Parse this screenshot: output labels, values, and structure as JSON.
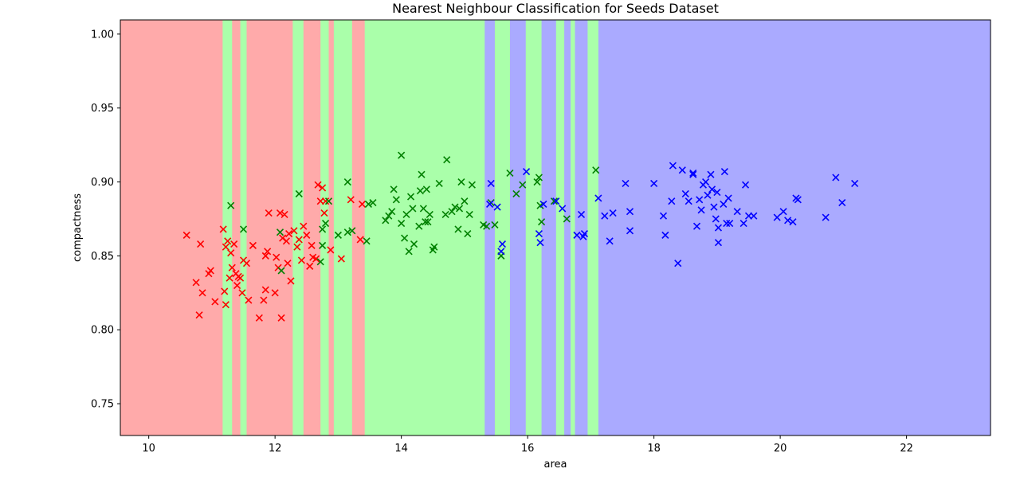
{
  "chart_data": {
    "type": "scatter",
    "title": "Nearest Neighbour Classification for Seeds Dataset",
    "xlabel": "area",
    "ylabel": "compactness",
    "xlim": [
      9.55,
      23.33
    ],
    "ylim": [
      0.7285,
      1.0096
    ],
    "xticks": [
      10,
      12,
      14,
      16,
      18,
      20,
      22
    ],
    "yticks": [
      0.75,
      0.8,
      0.85,
      0.9,
      0.95,
      1.0
    ],
    "xtick_labels": [
      "10",
      "12",
      "14",
      "16",
      "18",
      "20",
      "22"
    ],
    "ytick_labels": [
      "0.75",
      "0.80",
      "0.85",
      "0.90",
      "0.95",
      "1.00"
    ],
    "grid": false,
    "marker": "x",
    "classes": [
      {
        "color": "#ff0000",
        "region_color": "#ffaaaa"
      },
      {
        "color": "#008000",
        "region_color": "#aaffaa"
      },
      {
        "color": "#0000ff",
        "region_color": "#aaaaff"
      }
    ],
    "regions": [
      {
        "x0": 9.55,
        "x1": 11.17,
        "cls": 0
      },
      {
        "x0": 11.17,
        "x1": 11.32,
        "cls": 1
      },
      {
        "x0": 11.32,
        "x1": 11.45,
        "cls": 0
      },
      {
        "x0": 11.45,
        "x1": 11.55,
        "cls": 1
      },
      {
        "x0": 11.55,
        "x1": 12.28,
        "cls": 0
      },
      {
        "x0": 12.28,
        "x1": 12.45,
        "cls": 1
      },
      {
        "x0": 12.45,
        "x1": 12.72,
        "cls": 0
      },
      {
        "x0": 12.72,
        "x1": 12.85,
        "cls": 1
      },
      {
        "x0": 12.85,
        "x1": 12.93,
        "cls": 0
      },
      {
        "x0": 12.93,
        "x1": 13.22,
        "cls": 1
      },
      {
        "x0": 13.22,
        "x1": 13.42,
        "cls": 0
      },
      {
        "x0": 13.42,
        "x1": 15.32,
        "cls": 1
      },
      {
        "x0": 15.32,
        "x1": 15.48,
        "cls": 2
      },
      {
        "x0": 15.48,
        "x1": 15.72,
        "cls": 1
      },
      {
        "x0": 15.72,
        "x1": 15.97,
        "cls": 2
      },
      {
        "x0": 15.97,
        "x1": 16.22,
        "cls": 1
      },
      {
        "x0": 16.22,
        "x1": 16.45,
        "cls": 2
      },
      {
        "x0": 16.45,
        "x1": 16.58,
        "cls": 1
      },
      {
        "x0": 16.58,
        "x1": 16.68,
        "cls": 2
      },
      {
        "x0": 16.68,
        "x1": 16.75,
        "cls": 1
      },
      {
        "x0": 16.75,
        "x1": 16.95,
        "cls": 2
      },
      {
        "x0": 16.95,
        "x1": 17.12,
        "cls": 1
      },
      {
        "x0": 17.12,
        "x1": 23.33,
        "cls": 2
      }
    ],
    "series": [
      {
        "cls": 0,
        "points": [
          [
            10.6,
            0.864
          ],
          [
            10.75,
            0.832
          ],
          [
            10.8,
            0.81
          ],
          [
            10.82,
            0.858
          ],
          [
            10.85,
            0.825
          ],
          [
            10.95,
            0.838
          ],
          [
            10.98,
            0.84
          ],
          [
            11.05,
            0.819
          ],
          [
            11.18,
            0.868
          ],
          [
            11.2,
            0.826
          ],
          [
            11.22,
            0.856
          ],
          [
            11.22,
            0.817
          ],
          [
            11.25,
            0.86
          ],
          [
            11.28,
            0.835
          ],
          [
            11.3,
            0.852
          ],
          [
            11.32,
            0.842
          ],
          [
            11.35,
            0.858
          ],
          [
            11.38,
            0.838
          ],
          [
            11.4,
            0.83
          ],
          [
            11.42,
            0.836
          ],
          [
            11.45,
            0.835
          ],
          [
            11.48,
            0.825
          ],
          [
            11.5,
            0.847
          ],
          [
            11.55,
            0.845
          ],
          [
            11.58,
            0.82
          ],
          [
            11.65,
            0.857
          ],
          [
            11.75,
            0.808
          ],
          [
            11.82,
            0.82
          ],
          [
            11.85,
            0.827
          ],
          [
            11.85,
            0.85
          ],
          [
            11.88,
            0.853
          ],
          [
            11.9,
            0.879
          ],
          [
            12.0,
            0.825
          ],
          [
            12.02,
            0.849
          ],
          [
            12.05,
            0.842
          ],
          [
            12.08,
            0.879
          ],
          [
            12.1,
            0.808
          ],
          [
            12.12,
            0.862
          ],
          [
            12.15,
            0.878
          ],
          [
            12.18,
            0.86
          ],
          [
            12.2,
            0.845
          ],
          [
            12.22,
            0.865
          ],
          [
            12.25,
            0.833
          ],
          [
            12.3,
            0.867
          ],
          [
            12.35,
            0.856
          ],
          [
            12.38,
            0.861
          ],
          [
            12.42,
            0.847
          ],
          [
            12.45,
            0.87
          ],
          [
            12.5,
            0.864
          ],
          [
            12.55,
            0.843
          ],
          [
            12.58,
            0.857
          ],
          [
            12.6,
            0.849
          ],
          [
            12.65,
            0.848
          ],
          [
            12.68,
            0.898
          ],
          [
            12.72,
            0.887
          ],
          [
            12.75,
            0.896
          ],
          [
            12.78,
            0.879
          ],
          [
            12.8,
            0.887
          ],
          [
            12.88,
            0.854
          ],
          [
            13.05,
            0.848
          ],
          [
            13.2,
            0.888
          ],
          [
            13.35,
            0.861
          ],
          [
            13.38,
            0.885
          ]
        ]
      },
      {
        "cls": 1,
        "points": [
          [
            11.3,
            0.884
          ],
          [
            11.5,
            0.868
          ],
          [
            12.08,
            0.866
          ],
          [
            12.1,
            0.84
          ],
          [
            12.38,
            0.892
          ],
          [
            12.72,
            0.846
          ],
          [
            12.75,
            0.857
          ],
          [
            12.75,
            0.868
          ],
          [
            12.8,
            0.872
          ],
          [
            12.85,
            0.887
          ],
          [
            13.0,
            0.864
          ],
          [
            13.15,
            0.9
          ],
          [
            13.15,
            0.866
          ],
          [
            13.22,
            0.867
          ],
          [
            13.45,
            0.86
          ],
          [
            13.48,
            0.885
          ],
          [
            13.55,
            0.886
          ],
          [
            13.75,
            0.874
          ],
          [
            13.8,
            0.877
          ],
          [
            13.85,
            0.88
          ],
          [
            13.88,
            0.895
          ],
          [
            13.92,
            0.888
          ],
          [
            14.0,
            0.872
          ],
          [
            14.0,
            0.918
          ],
          [
            14.05,
            0.862
          ],
          [
            14.08,
            0.878
          ],
          [
            14.12,
            0.853
          ],
          [
            14.15,
            0.89
          ],
          [
            14.18,
            0.882
          ],
          [
            14.2,
            0.858
          ],
          [
            14.28,
            0.87
          ],
          [
            14.3,
            0.894
          ],
          [
            14.32,
            0.905
          ],
          [
            14.35,
            0.882
          ],
          [
            14.38,
            0.873
          ],
          [
            14.4,
            0.895
          ],
          [
            14.42,
            0.873
          ],
          [
            14.45,
            0.878
          ],
          [
            14.5,
            0.854
          ],
          [
            14.52,
            0.856
          ],
          [
            14.6,
            0.899
          ],
          [
            14.7,
            0.878
          ],
          [
            14.72,
            0.915
          ],
          [
            14.8,
            0.88
          ],
          [
            14.85,
            0.883
          ],
          [
            14.9,
            0.868
          ],
          [
            14.92,
            0.882
          ],
          [
            14.95,
            0.9
          ],
          [
            15.0,
            0.887
          ],
          [
            15.05,
            0.865
          ],
          [
            15.08,
            0.878
          ],
          [
            15.12,
            0.898
          ],
          [
            15.3,
            0.871
          ],
          [
            15.35,
            0.87
          ],
          [
            15.42,
            0.886
          ],
          [
            15.48,
            0.871
          ],
          [
            15.58,
            0.85
          ],
          [
            15.72,
            0.906
          ],
          [
            15.82,
            0.892
          ],
          [
            15.92,
            0.898
          ],
          [
            16.15,
            0.9
          ],
          [
            16.18,
            0.903
          ],
          [
            16.2,
            0.884
          ],
          [
            16.22,
            0.873
          ],
          [
            16.42,
            0.887
          ],
          [
            16.62,
            0.875
          ],
          [
            17.08,
            0.908
          ]
        ]
      },
      {
        "cls": 2,
        "points": [
          [
            15.4,
            0.885
          ],
          [
            15.42,
            0.899
          ],
          [
            15.52,
            0.883
          ],
          [
            15.58,
            0.853
          ],
          [
            15.6,
            0.858
          ],
          [
            15.98,
            0.907
          ],
          [
            16.18,
            0.865
          ],
          [
            16.2,
            0.859
          ],
          [
            16.25,
            0.885
          ],
          [
            16.45,
            0.887
          ],
          [
            16.55,
            0.882
          ],
          [
            16.78,
            0.864
          ],
          [
            16.85,
            0.878
          ],
          [
            16.88,
            0.863
          ],
          [
            16.9,
            0.865
          ],
          [
            17.12,
            0.889
          ],
          [
            17.22,
            0.877
          ],
          [
            17.3,
            0.86
          ],
          [
            17.35,
            0.879
          ],
          [
            17.55,
            0.899
          ],
          [
            17.62,
            0.88
          ],
          [
            17.62,
            0.867
          ],
          [
            18.0,
            0.899
          ],
          [
            18.15,
            0.877
          ],
          [
            18.18,
            0.864
          ],
          [
            18.28,
            0.887
          ],
          [
            18.3,
            0.911
          ],
          [
            18.38,
            0.845
          ],
          [
            18.45,
            0.908
          ],
          [
            18.5,
            0.892
          ],
          [
            18.55,
            0.887
          ],
          [
            18.62,
            0.905
          ],
          [
            18.68,
            0.87
          ],
          [
            18.72,
            0.888
          ],
          [
            18.75,
            0.881
          ],
          [
            18.78,
            0.898
          ],
          [
            18.82,
            0.9
          ],
          [
            18.85,
            0.891
          ],
          [
            18.9,
            0.905
          ],
          [
            18.92,
            0.895
          ],
          [
            18.95,
            0.883
          ],
          [
            18.98,
            0.875
          ],
          [
            19.0,
            0.893
          ],
          [
            19.02,
            0.869
          ],
          [
            19.02,
            0.859
          ],
          [
            19.1,
            0.885
          ],
          [
            19.12,
            0.907
          ],
          [
            19.15,
            0.872
          ],
          [
            19.18,
            0.889
          ],
          [
            19.2,
            0.872
          ],
          [
            19.32,
            0.88
          ],
          [
            19.42,
            0.872
          ],
          [
            19.45,
            0.898
          ],
          [
            19.5,
            0.877
          ],
          [
            19.58,
            0.877
          ],
          [
            19.95,
            0.876
          ],
          [
            20.05,
            0.88
          ],
          [
            20.12,
            0.874
          ],
          [
            20.2,
            0.873
          ],
          [
            20.25,
            0.889
          ],
          [
            20.28,
            0.888
          ],
          [
            20.72,
            0.876
          ],
          [
            20.88,
            0.903
          ],
          [
            20.98,
            0.886
          ],
          [
            21.18,
            0.899
          ],
          [
            18.62,
            0.906
          ]
        ]
      }
    ]
  }
}
